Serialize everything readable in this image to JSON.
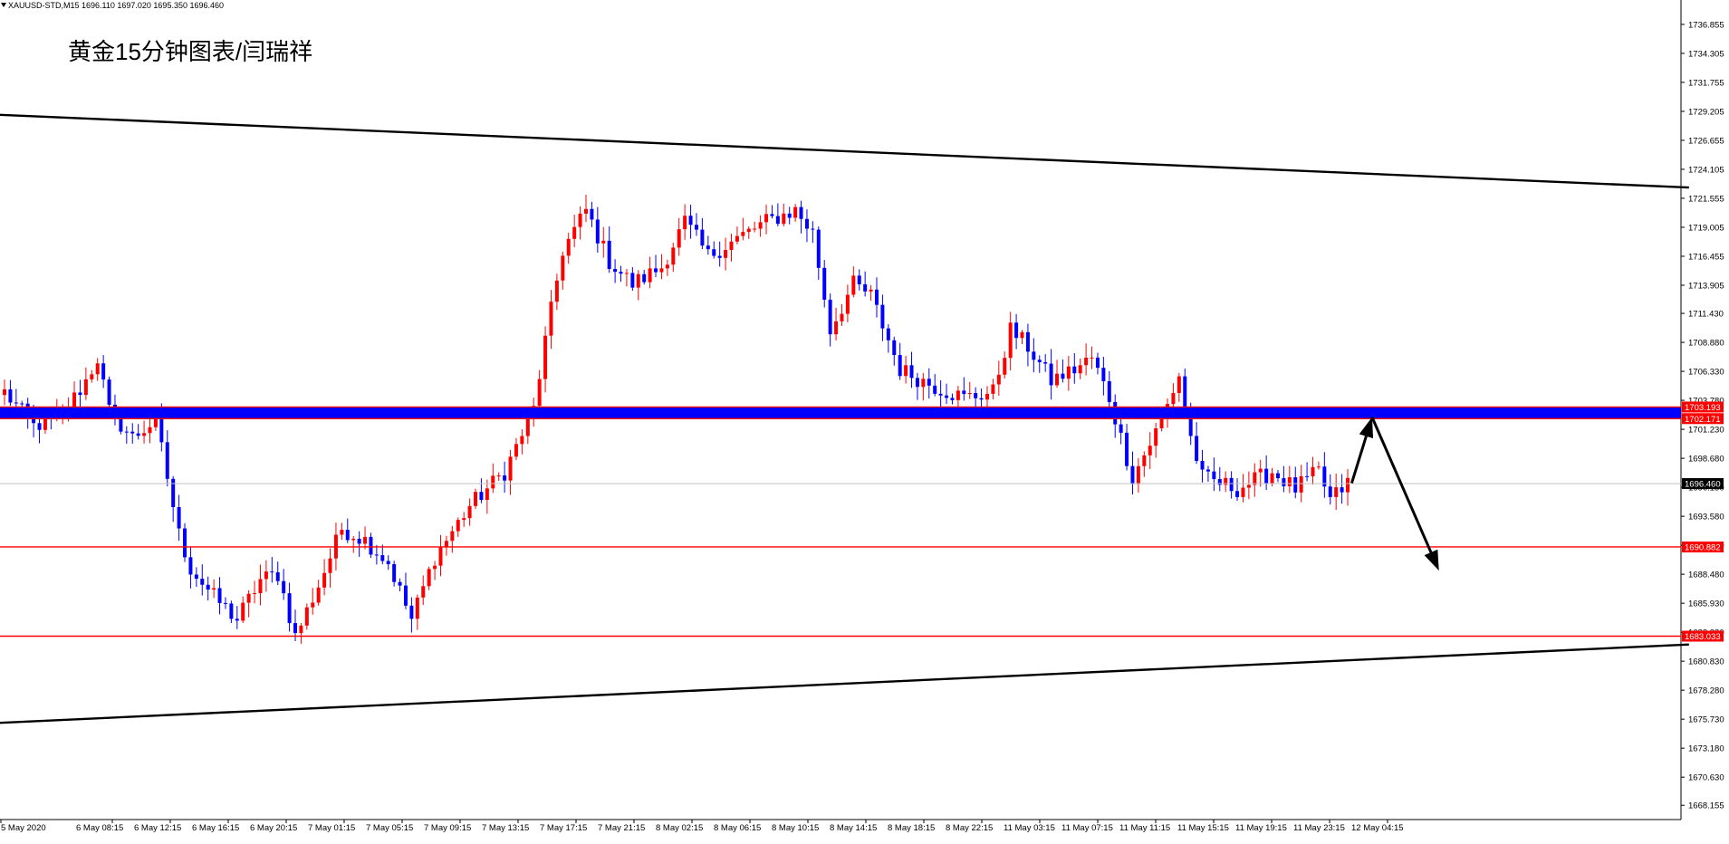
{
  "header": {
    "symbol_info": "XAUUSD-STD,M15  1696.110 1697.020 1695.350 1696.460",
    "watermark": "黄金15分钟图表/闫瑞祥"
  },
  "colors": {
    "bull": "#ff0000",
    "bear": "#0000ff",
    "zone": "#0000ff",
    "level_line": "#ff0000",
    "trendline": "#000000",
    "current_price_bg": "#000000",
    "grid": "#c0c0c0"
  },
  "chart_data": {
    "type": "candlestick",
    "symbol": "XAUUSD-STD",
    "timeframe": "M15",
    "ylim": [
      1666.9,
      1739.0
    ],
    "y_ticks": [
      "1736.855",
      "1734.305",
      "1731.755",
      "1729.205",
      "1726.655",
      "1724.105",
      "1721.555",
      "1719.005",
      "1716.455",
      "1713.905",
      "1711.430",
      "1708.880",
      "1706.330",
      "1703.780",
      "1701.230",
      "1698.680",
      "1696.130",
      "1693.580",
      "1691.030",
      "1688.480",
      "1685.930",
      "1683.380",
      "1680.830",
      "1678.280",
      "1675.730",
      "1673.180",
      "1670.630",
      "1668.155"
    ],
    "x_ticks": [
      "5 May 2020",
      "6 May 08:15",
      "6 May 12:15",
      "6 May 16:15",
      "6 May 20:15",
      "7 May 01:15",
      "7 May 05:15",
      "7 May 09:15",
      "7 May 13:15",
      "7 May 17:15",
      "7 May 21:15",
      "8 May 02:15",
      "8 May 06:15",
      "8 May 10:15",
      "8 May 14:15",
      "8 May 18:15",
      "8 May 22:15",
      "11 May 03:15",
      "11 May 07:15",
      "11 May 11:15",
      "11 May 15:15",
      "11 May 19:15",
      "11 May 23:15",
      "12 May 04:15"
    ],
    "resistance_zone": {
      "upper": "1703.193",
      "lower": "1702.171"
    },
    "support_levels": [
      "1690.882",
      "1683.033"
    ],
    "current_price": "1696.460",
    "trendlines": [
      {
        "name": "upper-channel",
        "from": {
          "bar": -5,
          "price": 1729.0
        },
        "to": {
          "bar": 290,
          "price": 1722.5
        }
      },
      {
        "name": "lower-channel",
        "from": {
          "bar": -5,
          "price": 1675.3
        },
        "to": {
          "bar": 290,
          "price": 1682.3
        }
      }
    ],
    "projection_arrows": [
      {
        "from": {
          "bar": 232,
          "price": 1696.5
        },
        "to": {
          "bar": 235.5,
          "price": 1702.3
        }
      },
      {
        "from": {
          "bar": 235.5,
          "price": 1702.3
        },
        "to": {
          "bar": 247,
          "price": 1688.8
        }
      }
    ],
    "price_path": [
      [
        0,
        1704.5
      ],
      [
        5,
        1701.5
      ],
      [
        10,
        1702.5
      ],
      [
        14,
        1705.5
      ],
      [
        16,
        1707.5
      ],
      [
        18,
        1702.8
      ],
      [
        22,
        1700.5
      ],
      [
        26,
        1702.0
      ],
      [
        28,
        1697.0
      ],
      [
        30,
        1692.0
      ],
      [
        32,
        1689.0
      ],
      [
        36,
        1686.5
      ],
      [
        40,
        1684.5
      ],
      [
        44,
        1688.0
      ],
      [
        47,
        1688.5
      ],
      [
        50,
        1683.0
      ],
      [
        54,
        1687.5
      ],
      [
        58,
        1692.5
      ],
      [
        62,
        1691.5
      ],
      [
        66,
        1689.5
      ],
      [
        68,
        1687.0
      ],
      [
        70,
        1684.5
      ],
      [
        74,
        1690.0
      ],
      [
        80,
        1694.5
      ],
      [
        86,
        1697.5
      ],
      [
        91,
        1703.0
      ],
      [
        93,
        1709.0
      ],
      [
        96,
        1717.0
      ],
      [
        100,
        1720.5
      ],
      [
        104,
        1716.0
      ],
      [
        108,
        1714.0
      ],
      [
        113,
        1715.5
      ],
      [
        117,
        1719.5
      ],
      [
        121,
        1716.5
      ],
      [
        126,
        1718.0
      ],
      [
        131,
        1719.5
      ],
      [
        136,
        1720.5
      ],
      [
        139,
        1718.5
      ],
      [
        142,
        1710.0
      ],
      [
        146,
        1714.0
      ],
      [
        149,
        1713.0
      ],
      [
        154,
        1706.5
      ],
      [
        160,
        1705.0
      ],
      [
        165,
        1704.0
      ],
      [
        170,
        1704.5
      ],
      [
        173,
        1710.0
      ],
      [
        176,
        1708.5
      ],
      [
        180,
        1705.5
      ],
      [
        184,
        1706.5
      ],
      [
        187,
        1707.5
      ],
      [
        190,
        1704.0
      ],
      [
        194,
        1697.0
      ],
      [
        199,
        1702.0
      ],
      [
        202,
        1706.0
      ],
      [
        204,
        1700.5
      ],
      [
        206,
        1697.0
      ],
      [
        212,
        1696.0
      ],
      [
        218,
        1697.5
      ],
      [
        222,
        1696.0
      ],
      [
        226,
        1697.5
      ],
      [
        228,
        1695.0
      ],
      [
        231,
        1696.5
      ]
    ],
    "bars_visible": 232
  }
}
